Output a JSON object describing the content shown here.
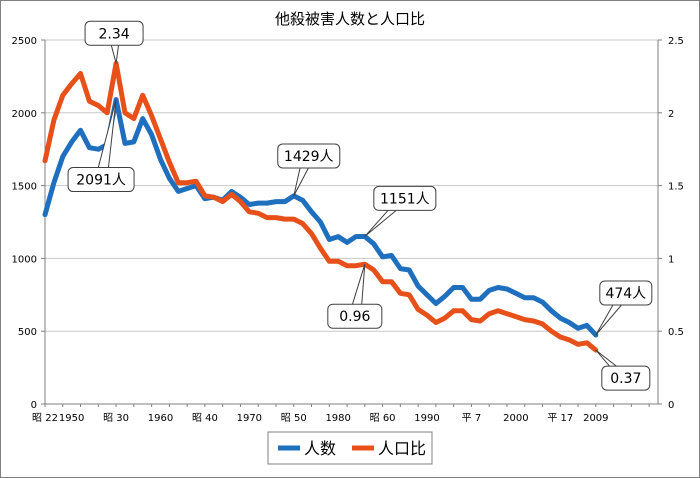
{
  "chart_data": {
    "type": "line",
    "title": "他殺被害人数と人口比",
    "y_left": {
      "range": [
        0,
        2500
      ],
      "ticks": [
        "0",
        "500",
        "1000",
        "1500",
        "2000",
        "2500"
      ]
    },
    "y_right": {
      "range": [
        0,
        2.5
      ],
      "ticks": [
        "0",
        "0.5",
        "1",
        "1.5",
        "2",
        "2.5"
      ]
    },
    "x_range": [
      1947,
      2016
    ],
    "x_ticks": [
      {
        "year": 1947,
        "label": "昭 22"
      },
      {
        "year": 1950,
        "label": "1950"
      },
      {
        "year": 1955,
        "label": "昭 30"
      },
      {
        "year": 1960,
        "label": "1960"
      },
      {
        "year": 1965,
        "label": "昭 40"
      },
      {
        "year": 1970,
        "label": "1970"
      },
      {
        "year": 1975,
        "label": "昭 50"
      },
      {
        "year": 1980,
        "label": "1980"
      },
      {
        "year": 1985,
        "label": "昭 60"
      },
      {
        "year": 1990,
        "label": "1990"
      },
      {
        "year": 1995,
        "label": "平 7"
      },
      {
        "year": 2000,
        "label": "2000"
      },
      {
        "year": 2005,
        "label": "平 17"
      },
      {
        "year": 2009,
        "label": "2009"
      }
    ],
    "grid": true,
    "legend_position": "bottom",
    "series": [
      {
        "name": "人数",
        "axis": "left",
        "color": "#1f6fbf",
        "points": [
          [
            1947,
            1300
          ],
          [
            1948,
            1520
          ],
          [
            1949,
            1700
          ],
          [
            1950,
            1800
          ],
          [
            1951,
            1880
          ],
          [
            1952,
            1760
          ],
          [
            1953,
            1750
          ],
          [
            1954,
            1780
          ],
          [
            1955,
            2091
          ],
          [
            1956,
            1790
          ],
          [
            1957,
            1800
          ],
          [
            1958,
            1960
          ],
          [
            1959,
            1850
          ],
          [
            1960,
            1680
          ],
          [
            1961,
            1550
          ],
          [
            1962,
            1460
          ],
          [
            1963,
            1480
          ],
          [
            1964,
            1500
          ],
          [
            1965,
            1410
          ],
          [
            1966,
            1420
          ],
          [
            1967,
            1400
          ],
          [
            1968,
            1460
          ],
          [
            1969,
            1420
          ],
          [
            1970,
            1370
          ],
          [
            1971,
            1380
          ],
          [
            1972,
            1380
          ],
          [
            1973,
            1390
          ],
          [
            1974,
            1390
          ],
          [
            1975,
            1429
          ],
          [
            1976,
            1400
          ],
          [
            1977,
            1320
          ],
          [
            1978,
            1250
          ],
          [
            1979,
            1130
          ],
          [
            1980,
            1150
          ],
          [
            1981,
            1110
          ],
          [
            1982,
            1150
          ],
          [
            1983,
            1151
          ],
          [
            1984,
            1100
          ],
          [
            1985,
            1010
          ],
          [
            1986,
            1020
          ],
          [
            1987,
            930
          ],
          [
            1988,
            920
          ],
          [
            1989,
            810
          ],
          [
            1990,
            750
          ],
          [
            1991,
            690
          ],
          [
            1992,
            740
          ],
          [
            1993,
            800
          ],
          [
            1994,
            800
          ],
          [
            1995,
            720
          ],
          [
            1996,
            720
          ],
          [
            1997,
            780
          ],
          [
            1998,
            800
          ],
          [
            1999,
            790
          ],
          [
            2000,
            760
          ],
          [
            2001,
            730
          ],
          [
            2002,
            730
          ],
          [
            2003,
            700
          ],
          [
            2004,
            640
          ],
          [
            2005,
            590
          ],
          [
            2006,
            560
          ],
          [
            2007,
            520
          ],
          [
            2008,
            540
          ],
          [
            2009,
            474
          ]
        ]
      },
      {
        "name": "人口比",
        "axis": "right",
        "color": "#e8501a",
        "points": [
          [
            1947,
            1.67
          ],
          [
            1948,
            1.95
          ],
          [
            1949,
            2.12
          ],
          [
            1950,
            2.2
          ],
          [
            1951,
            2.27
          ],
          [
            1952,
            2.08
          ],
          [
            1953,
            2.05
          ],
          [
            1954,
            2.0
          ],
          [
            1955,
            2.34
          ],
          [
            1956,
            2.0
          ],
          [
            1957,
            1.96
          ],
          [
            1958,
            2.12
          ],
          [
            1959,
            1.98
          ],
          [
            1960,
            1.82
          ],
          [
            1961,
            1.66
          ],
          [
            1962,
            1.52
          ],
          [
            1963,
            1.52
          ],
          [
            1964,
            1.53
          ],
          [
            1965,
            1.43
          ],
          [
            1966,
            1.42
          ],
          [
            1967,
            1.39
          ],
          [
            1968,
            1.44
          ],
          [
            1969,
            1.39
          ],
          [
            1970,
            1.32
          ],
          [
            1971,
            1.31
          ],
          [
            1972,
            1.28
          ],
          [
            1973,
            1.28
          ],
          [
            1974,
            1.27
          ],
          [
            1975,
            1.27
          ],
          [
            1976,
            1.24
          ],
          [
            1977,
            1.17
          ],
          [
            1978,
            1.07
          ],
          [
            1979,
            0.98
          ],
          [
            1980,
            0.98
          ],
          [
            1981,
            0.95
          ],
          [
            1982,
            0.95
          ],
          [
            1983,
            0.96
          ],
          [
            1984,
            0.92
          ],
          [
            1985,
            0.84
          ],
          [
            1986,
            0.84
          ],
          [
            1987,
            0.76
          ],
          [
            1988,
            0.75
          ],
          [
            1989,
            0.65
          ],
          [
            1990,
            0.61
          ],
          [
            1991,
            0.56
          ],
          [
            1992,
            0.59
          ],
          [
            1993,
            0.64
          ],
          [
            1994,
            0.64
          ],
          [
            1995,
            0.58
          ],
          [
            1996,
            0.57
          ],
          [
            1997,
            0.62
          ],
          [
            1998,
            0.64
          ],
          [
            1999,
            0.62
          ],
          [
            2000,
            0.6
          ],
          [
            2001,
            0.58
          ],
          [
            2002,
            0.57
          ],
          [
            2003,
            0.55
          ],
          [
            2004,
            0.5
          ],
          [
            2005,
            0.46
          ],
          [
            2006,
            0.44
          ],
          [
            2007,
            0.41
          ],
          [
            2008,
            0.42
          ],
          [
            2009,
            0.37
          ]
        ]
      }
    ],
    "annotations": [
      {
        "text": "2.34",
        "series": "人口比",
        "x": 1955,
        "value": 2.34
      },
      {
        "text": "2091人",
        "series": "人数",
        "x": 1955,
        "value": 2091
      },
      {
        "text": "1429人",
        "series": "人数",
        "x": 1975,
        "value": 1429
      },
      {
        "text": "1151人",
        "series": "人数",
        "x": 1983,
        "value": 1151
      },
      {
        "text": "0.96",
        "series": "人口比",
        "x": 1983,
        "value": 0.96
      },
      {
        "text": "474人",
        "series": "人数",
        "x": 2009,
        "value": 474
      },
      {
        "text": "0.37",
        "series": "人口比",
        "x": 2009,
        "value": 0.37
      }
    ]
  }
}
